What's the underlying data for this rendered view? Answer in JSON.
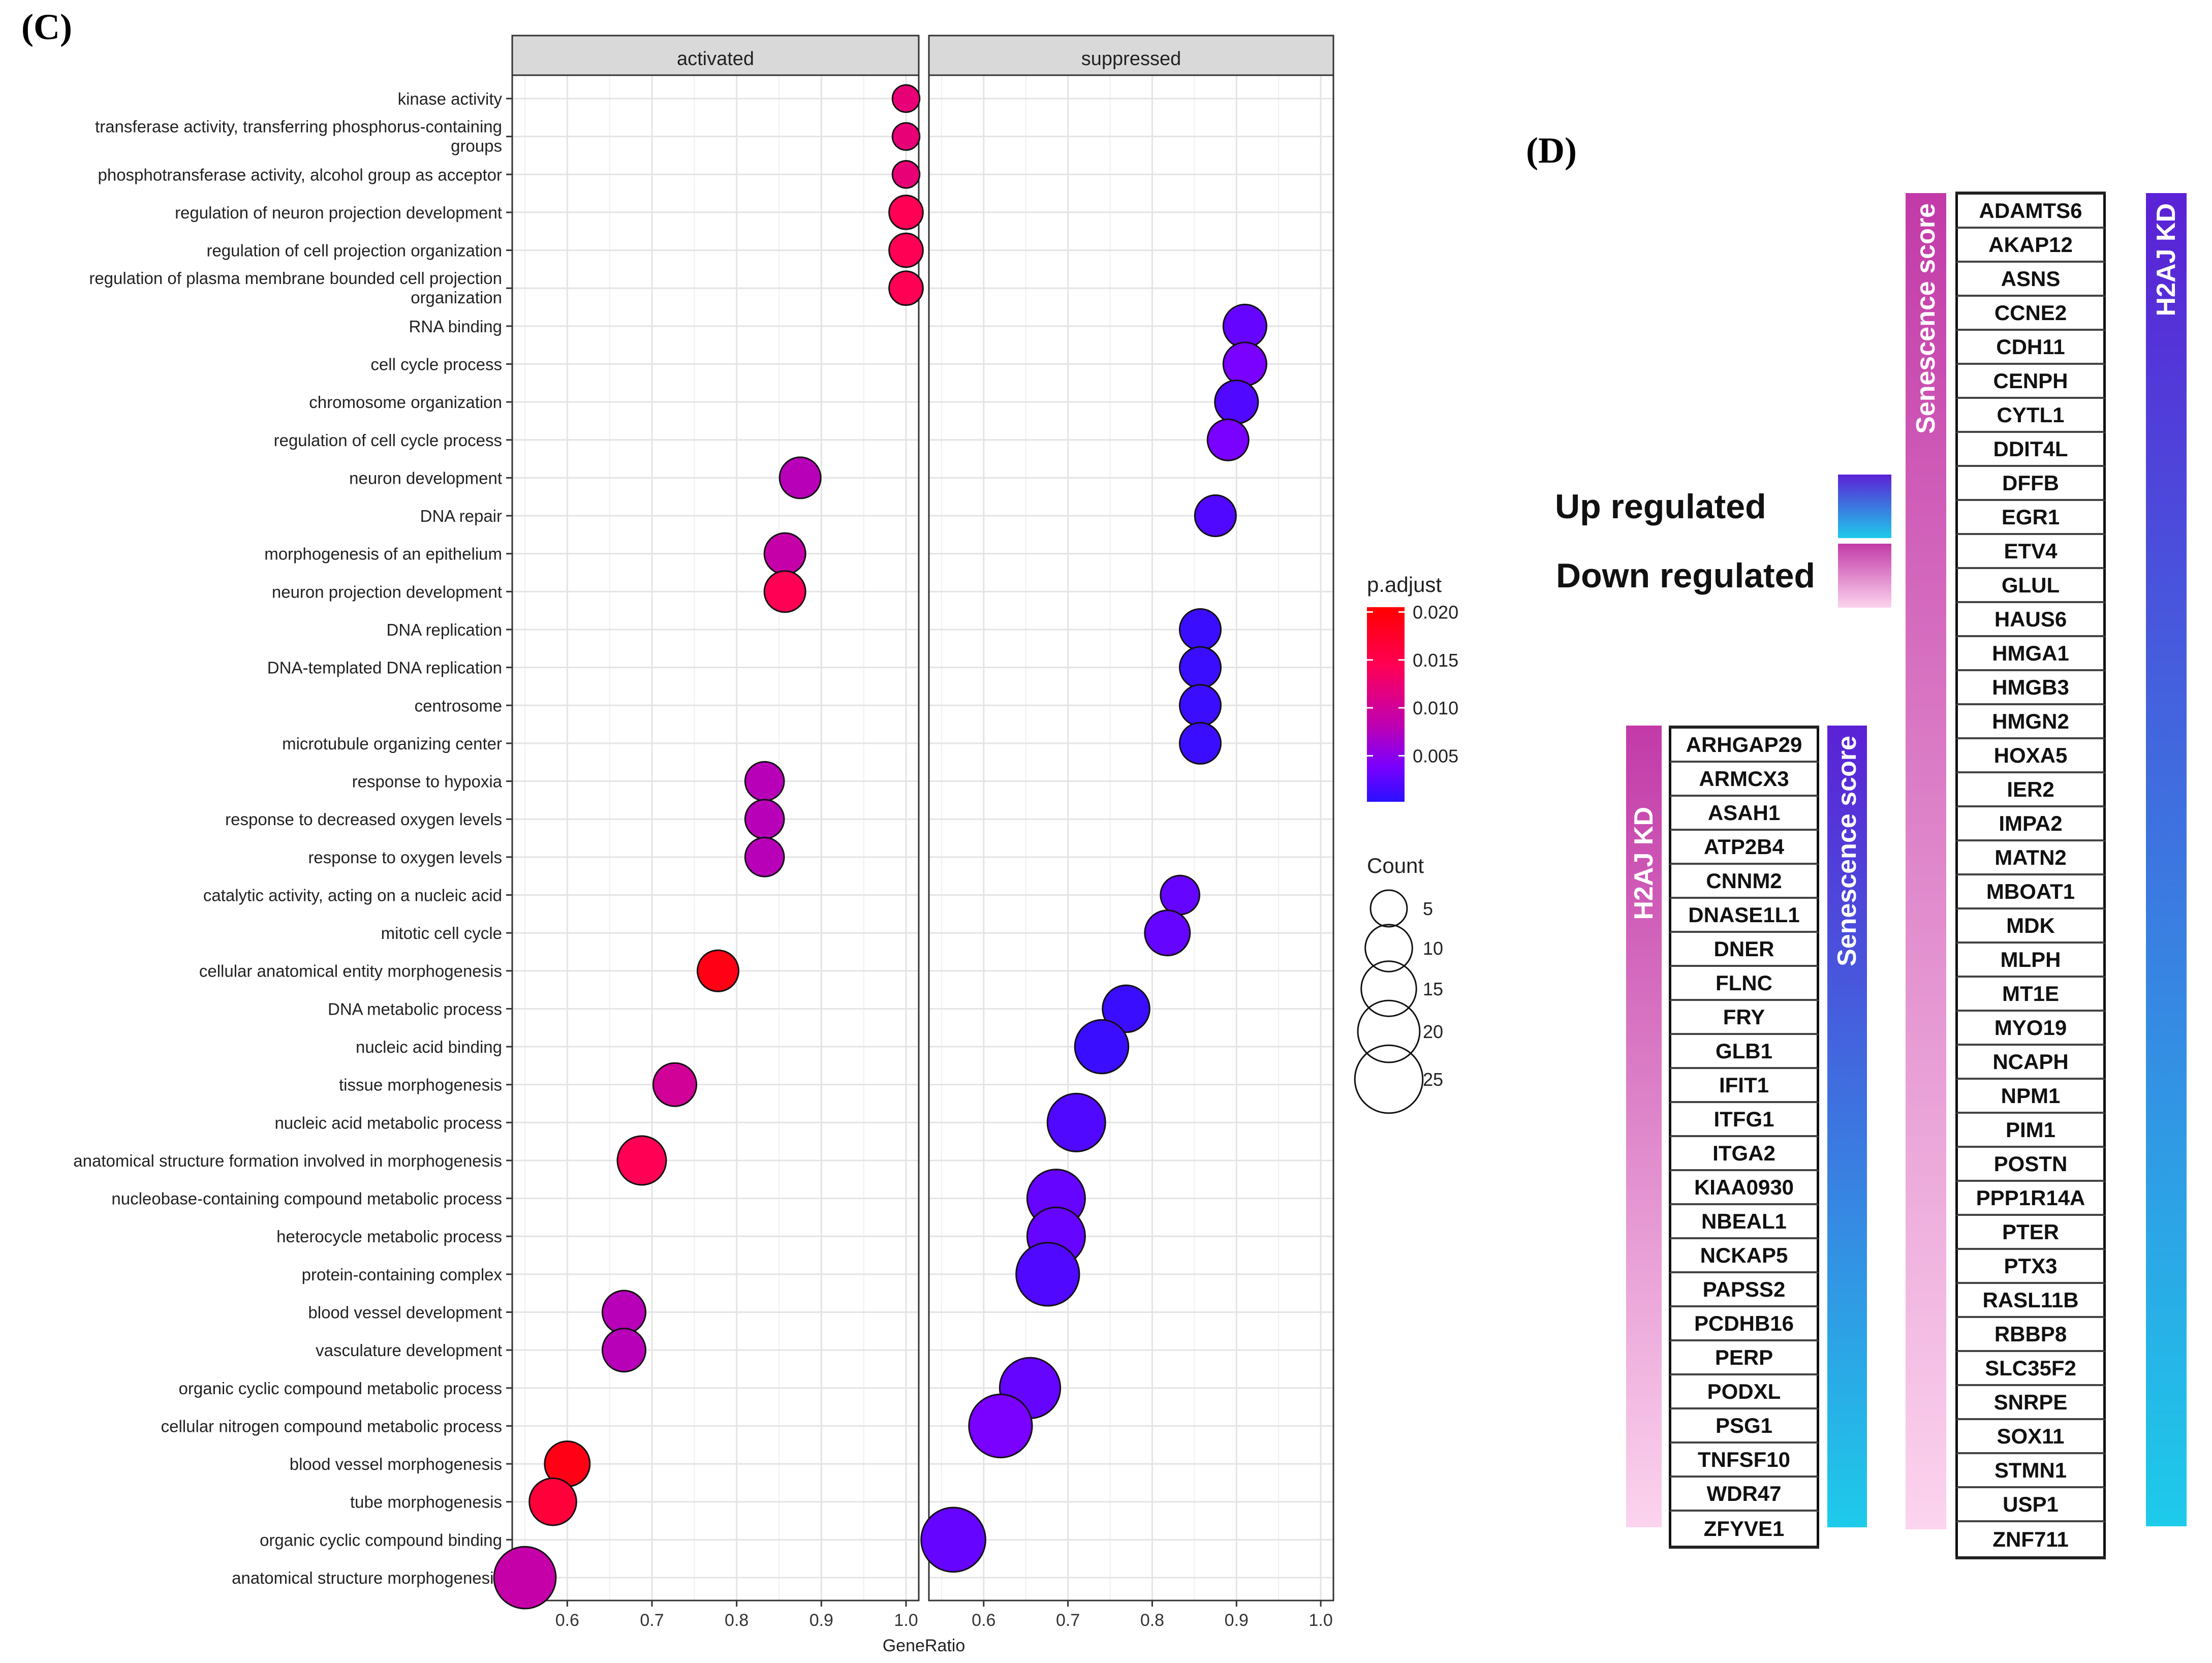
{
  "panel_c_label": "(C)",
  "panel_d_label": "(D)",
  "chart_data": {
    "type": "scatter",
    "x_label": "GeneRatio",
    "facets": [
      "activated",
      "suppressed"
    ],
    "x_ticks": [
      "0.6",
      "0.7",
      "0.8",
      "0.9",
      "1.0"
    ],
    "xlim": [
      0.535,
      1.015
    ],
    "terms": [
      "kinase activity",
      "transferase activity, transferring phosphorus-containing groups",
      "phosphotransferase activity, alcohol group as acceptor",
      "regulation of neuron projection development",
      "regulation of cell projection organization",
      "regulation of plasma membrane bounded cell projection organization",
      "RNA binding",
      "cell cycle process",
      "chromosome organization",
      "regulation of cell cycle process",
      "neuron development",
      "DNA repair",
      "morphogenesis of an epithelium",
      "neuron projection development",
      "DNA replication",
      "DNA-templated DNA replication",
      "centrosome",
      "microtubule organizing center",
      "response to hypoxia",
      "response to decreased oxygen levels",
      "response to oxygen levels",
      "catalytic activity, acting on a nucleic acid",
      "mitotic cell cycle",
      "cellular anatomical entity morphogenesis",
      "DNA metabolic process",
      "nucleic acid binding",
      "tissue morphogenesis",
      "nucleic acid metabolic process",
      "anatomical structure formation involved in morphogenesis",
      "nucleobase-containing compound metabolic process",
      "heterocycle metabolic process",
      "protein-containing complex",
      "blood vessel development",
      "vasculature development",
      "organic cyclic compound metabolic process",
      "cellular nitrogen compound metabolic process",
      "blood vessel morphogenesis",
      "tube morphogenesis",
      "organic cyclic compound binding",
      "anatomical structure morphogenesis"
    ],
    "points": [
      {
        "facet": "activated",
        "term": 0,
        "x": 1.0,
        "count": 2,
        "padj": 0.012
      },
      {
        "facet": "activated",
        "term": 1,
        "x": 1.0,
        "count": 2,
        "padj": 0.012
      },
      {
        "facet": "activated",
        "term": 2,
        "x": 1.0,
        "count": 2,
        "padj": 0.012
      },
      {
        "facet": "activated",
        "term": 3,
        "x": 1.0,
        "count": 4,
        "padj": 0.014
      },
      {
        "facet": "activated",
        "term": 4,
        "x": 1.0,
        "count": 4,
        "padj": 0.014
      },
      {
        "facet": "activated",
        "term": 5,
        "x": 1.0,
        "count": 4,
        "padj": 0.014
      },
      {
        "facet": "suppressed",
        "term": 6,
        "x": 0.91,
        "count": 8,
        "padj": 0.003
      },
      {
        "facet": "suppressed",
        "term": 7,
        "x": 0.91,
        "count": 8,
        "padj": 0.004
      },
      {
        "facet": "suppressed",
        "term": 8,
        "x": 0.9,
        "count": 8,
        "padj": 0.002
      },
      {
        "facet": "suppressed",
        "term": 9,
        "x": 0.89,
        "count": 7,
        "padj": 0.004
      },
      {
        "facet": "activated",
        "term": 10,
        "x": 0.875,
        "count": 7,
        "padj": 0.008
      },
      {
        "facet": "suppressed",
        "term": 11,
        "x": 0.875,
        "count": 7,
        "padj": 0.002
      },
      {
        "facet": "activated",
        "term": 12,
        "x": 0.857,
        "count": 7,
        "padj": 0.009
      },
      {
        "facet": "activated",
        "term": 13,
        "x": 0.857,
        "count": 7,
        "padj": 0.014
      },
      {
        "facet": "suppressed",
        "term": 14,
        "x": 0.857,
        "count": 7,
        "padj": 0.001
      },
      {
        "facet": "suppressed",
        "term": 15,
        "x": 0.857,
        "count": 7,
        "padj": 0.001
      },
      {
        "facet": "suppressed",
        "term": 16,
        "x": 0.857,
        "count": 7,
        "padj": 0.001
      },
      {
        "facet": "suppressed",
        "term": 17,
        "x": 0.857,
        "count": 7,
        "padj": 0.001
      },
      {
        "facet": "activated",
        "term": 18,
        "x": 0.833,
        "count": 6,
        "padj": 0.008
      },
      {
        "facet": "activated",
        "term": 19,
        "x": 0.833,
        "count": 6,
        "padj": 0.008
      },
      {
        "facet": "activated",
        "term": 20,
        "x": 0.833,
        "count": 6,
        "padj": 0.008
      },
      {
        "facet": "suppressed",
        "term": 21,
        "x": 0.833,
        "count": 6,
        "padj": 0.003
      },
      {
        "facet": "suppressed",
        "term": 22,
        "x": 0.818,
        "count": 9,
        "padj": 0.003
      },
      {
        "facet": "activated",
        "term": 23,
        "x": 0.778,
        "count": 7,
        "padj": 0.019
      },
      {
        "facet": "suppressed",
        "term": 24,
        "x": 0.769,
        "count": 10,
        "padj": 0.001
      },
      {
        "facet": "suppressed",
        "term": 25,
        "x": 0.74,
        "count": 14,
        "padj": 0.001
      },
      {
        "facet": "activated",
        "term": 26,
        "x": 0.727,
        "count": 8,
        "padj": 0.01
      },
      {
        "facet": "suppressed",
        "term": 27,
        "x": 0.71,
        "count": 17,
        "padj": 0.002
      },
      {
        "facet": "activated",
        "term": 28,
        "x": 0.688,
        "count": 11,
        "padj": 0.014
      },
      {
        "facet": "suppressed",
        "term": 29,
        "x": 0.686,
        "count": 17,
        "padj": 0.003
      },
      {
        "facet": "suppressed",
        "term": 30,
        "x": 0.686,
        "count": 17,
        "padj": 0.003
      },
      {
        "facet": "suppressed",
        "term": 31,
        "x": 0.676,
        "count": 21,
        "padj": 0.002
      },
      {
        "facet": "activated",
        "term": 32,
        "x": 0.667,
        "count": 8,
        "padj": 0.008
      },
      {
        "facet": "activated",
        "term": 33,
        "x": 0.667,
        "count": 8,
        "padj": 0.008
      },
      {
        "facet": "suppressed",
        "term": 34,
        "x": 0.655,
        "count": 19,
        "padj": 0.003
      },
      {
        "facet": "suppressed",
        "term": 35,
        "x": 0.62,
        "count": 21,
        "padj": 0.004
      },
      {
        "facet": "activated",
        "term": 36,
        "x": 0.6,
        "count": 9,
        "padj": 0.019
      },
      {
        "facet": "activated",
        "term": 37,
        "x": 0.583,
        "count": 10,
        "padj": 0.016
      },
      {
        "facet": "suppressed",
        "term": 38,
        "x": 0.564,
        "count": 22,
        "padj": 0.003
      },
      {
        "facet": "activated",
        "term": 39,
        "x": 0.55,
        "count": 20,
        "padj": 0.009
      }
    ],
    "color_legend": {
      "title": "p.adjust",
      "labels": [
        "0.020",
        "0.015",
        "0.010",
        "0.005"
      ],
      "values": [
        0.02,
        0.015,
        0.01,
        0.005
      ],
      "range": [
        0.0002,
        0.0205
      ],
      "colors": [
        "#ff0000",
        "#ff0055",
        "#c000b0",
        "#7a00ff",
        "#2a10ff"
      ]
    },
    "size_legend": {
      "title": "Count",
      "labels": [
        "5",
        "10",
        "15",
        "20",
        "25"
      ],
      "values": [
        5,
        10,
        15,
        20,
        25
      ]
    }
  },
  "panel_d": {
    "legend_up": "Up regulated",
    "legend_down": "Down regulated",
    "colors": {
      "blue_top": "#5b21d6",
      "blue_bottom": "#1ecbea",
      "pink_top": "#c23aa8",
      "pink_bottom": "#fcd4ee"
    },
    "right_table": {
      "left_bar_label": "Senescence score",
      "right_bar_label": "H2AJ KD",
      "genes": [
        "ADAMTS6",
        "AKAP12",
        "ASNS",
        "CCNE2",
        "CDH11",
        "CENPH",
        "CYTL1",
        "DDIT4L",
        "DFFB",
        "EGR1",
        "ETV4",
        "GLUL",
        "HAUS6",
        "HMGA1",
        "HMGB3",
        "HMGN2",
        "HOXA5",
        "IER2",
        "IMPA2",
        "MATN2",
        "MBOAT1",
        "MDK",
        "MLPH",
        "MT1E",
        "MYO19",
        "NCAPH",
        "NPM1",
        "PIM1",
        "POSTN",
        "PPP1R14A",
        "PTER",
        "PTX3",
        "RASL11B",
        "RBBP8",
        "SLC35F2",
        "SNRPE",
        "SOX11",
        "STMN1",
        "USP1",
        "ZNF711"
      ]
    },
    "left_table": {
      "left_bar_label": "H2AJ KD",
      "right_bar_label": "Senescence score",
      "genes": [
        "ARHGAP29",
        "ARMCX3",
        "ASAH1",
        "ATP2B4",
        "CNNM2",
        "DNASE1L1",
        "DNER",
        "FLNC",
        "FRY",
        "GLB1",
        "IFIT1",
        "ITFG1",
        "ITGA2",
        "KIAA0930",
        "NBEAL1",
        "NCKAP5",
        "PAPSS2",
        "PCDHB16",
        "PERP",
        "PODXL",
        "PSG1",
        "TNFSF10",
        "WDR47",
        "ZFYVE1"
      ]
    }
  }
}
